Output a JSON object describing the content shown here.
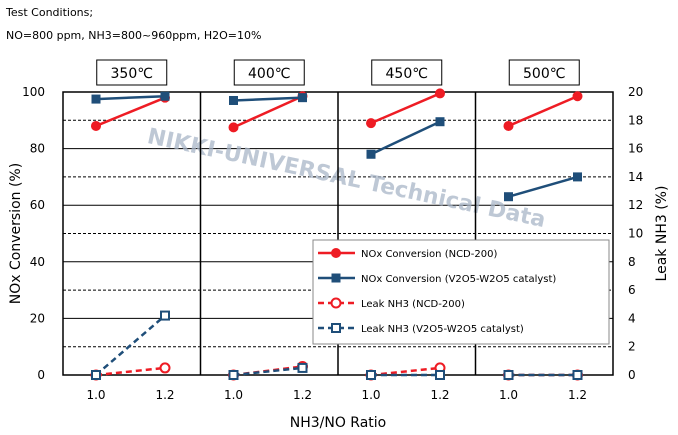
{
  "conditions": {
    "line1": "Test Conditions;",
    "line2": "NO=800 ppm, NH3=800~960ppm, H2O=10%"
  },
  "watermark": "NIKKI-UNIVERSAL Technical Data",
  "colors": {
    "ncd": "#ee1c24",
    "v2o5": "#1f4e79",
    "grid_major": "#000000",
    "grid_minor": "#000000"
  },
  "chart_data": {
    "type": "line",
    "xlabel": "NH3/NO Ratio",
    "ylabel": "NOx Conversion (%)",
    "y2label": "Leak NH3 (%)",
    "ylim": [
      0,
      100
    ],
    "y2lim": [
      0,
      20
    ],
    "yticks": [
      "0",
      "20",
      "40",
      "60",
      "80",
      "100"
    ],
    "y2ticks": [
      "0",
      "2",
      "4",
      "6",
      "8",
      "10",
      "12",
      "14",
      "16",
      "18",
      "20"
    ],
    "x_ticks": [
      "1.0",
      "1.2"
    ],
    "grid": "horizontal",
    "legend_position": "bottom-right",
    "panels": [
      {
        "label": "350℃",
        "series": [
          {
            "name": "NOx Conversion (NCD-200)",
            "axis": "left",
            "x": [
              1.0,
              1.2
            ],
            "values": [
              88,
              98
            ]
          },
          {
            "name": "NOx Conversion (V2O5-W2O5 catalyst)",
            "axis": "left",
            "x": [
              1.0,
              1.2
            ],
            "values": [
              97.5,
              98.5
            ]
          },
          {
            "name": "Leak NH3 (NCD-200)",
            "axis": "right",
            "x": [
              1.0,
              1.2
            ],
            "values": [
              0,
              0.5
            ]
          },
          {
            "name": "Leak NH3 (V2O5-W2O5 catalyst)",
            "axis": "right",
            "x": [
              1.0,
              1.2
            ],
            "values": [
              0,
              4.2
            ]
          }
        ]
      },
      {
        "label": "400℃",
        "series": [
          {
            "name": "NOx Conversion (NCD-200)",
            "axis": "left",
            "x": [
              1.0,
              1.2
            ],
            "values": [
              87.5,
              98.5
            ]
          },
          {
            "name": "NOx Conversion (V2O5-W2O5 catalyst)",
            "axis": "left",
            "x": [
              1.0,
              1.2
            ],
            "values": [
              97,
              98
            ]
          },
          {
            "name": "Leak NH3 (NCD-200)",
            "axis": "right",
            "x": [
              1.0,
              1.2
            ],
            "values": [
              0,
              0.6
            ]
          },
          {
            "name": "Leak NH3 (V2O5-W2O5 catalyst)",
            "axis": "right",
            "x": [
              1.0,
              1.2
            ],
            "values": [
              0,
              0.5
            ]
          }
        ]
      },
      {
        "label": "450℃",
        "series": [
          {
            "name": "NOx Conversion (NCD-200)",
            "axis": "left",
            "x": [
              1.0,
              1.2
            ],
            "values": [
              89,
              99.5
            ]
          },
          {
            "name": "NOx Conversion (V2O5-W2O5 catalyst)",
            "axis": "left",
            "x": [
              1.0,
              1.2
            ],
            "values": [
              78,
              89.5
            ]
          },
          {
            "name": "Leak NH3 (NCD-200)",
            "axis": "right",
            "x": [
              1.0,
              1.2
            ],
            "values": [
              0,
              0.5
            ]
          },
          {
            "name": "Leak NH3 (V2O5-W2O5 catalyst)",
            "axis": "right",
            "x": [
              1.0,
              1.2
            ],
            "values": [
              0,
              0
            ]
          }
        ]
      },
      {
        "label": "500℃",
        "series": [
          {
            "name": "NOx Conversion (NCD-200)",
            "axis": "left",
            "x": [
              1.0,
              1.2
            ],
            "values": [
              88,
              98.5
            ]
          },
          {
            "name": "NOx Conversion (V2O5-W2O5 catalyst)",
            "axis": "left",
            "x": [
              1.0,
              1.2
            ],
            "values": [
              63,
              70
            ]
          },
          {
            "name": "Leak NH3 (NCD-200)",
            "axis": "right",
            "x": [
              1.0,
              1.2
            ],
            "values": [
              0,
              0
            ]
          },
          {
            "name": "Leak NH3 (V2O5-W2O5 catalyst)",
            "axis": "right",
            "x": [
              1.0,
              1.2
            ],
            "values": [
              0,
              0
            ]
          }
        ]
      }
    ],
    "legend": [
      {
        "name": "NOx Conversion (NCD-200)",
        "color": "#ee1c24",
        "marker": "filled-circle",
        "line": "solid"
      },
      {
        "name": "NOx Conversion (V2O5-W2O5 catalyst)",
        "color": "#1f4e79",
        "marker": "filled-square",
        "line": "solid"
      },
      {
        "name": "Leak NH3 (NCD-200)",
        "color": "#ee1c24",
        "marker": "open-circle",
        "line": "dashed"
      },
      {
        "name": "Leak NH3 (V2O5-W2O5 catalyst)",
        "color": "#1f4e79",
        "marker": "open-square",
        "line": "dashed"
      }
    ]
  }
}
